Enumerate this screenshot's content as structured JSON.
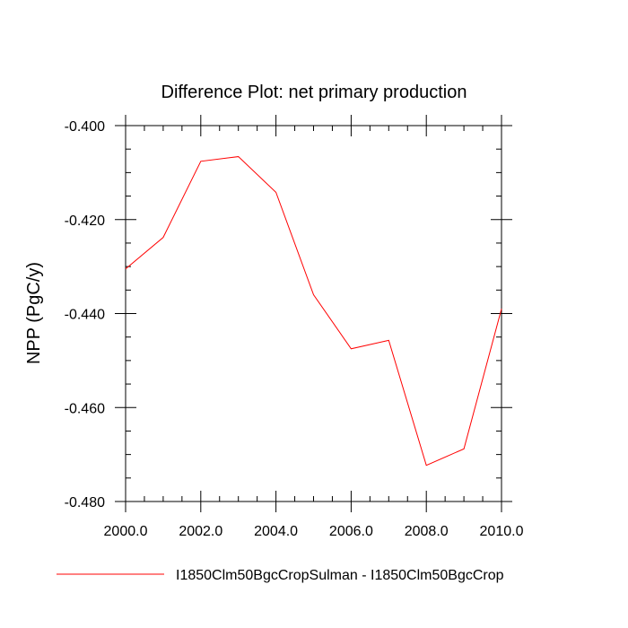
{
  "chart_data": {
    "type": "line",
    "title": "Difference Plot: net primary production",
    "ylabel": "NPP  (PgC/y)",
    "xlabel": "",
    "xlim": [
      2000.0,
      2010.0
    ],
    "ylim": [
      -0.48,
      -0.4
    ],
    "x_ticks": [
      "2000.0",
      "2002.0",
      "2004.0",
      "2006.0",
      "2008.0",
      "2010.0"
    ],
    "y_ticks": [
      "-0.400",
      "-0.420",
      "-0.440",
      "-0.460",
      "-0.480"
    ],
    "grid": false,
    "legend_position": "bottom",
    "series": [
      {
        "name": "I1850Clm50BgcCropSulman - I1850Clm50BgcCrop",
        "color": "#ff0000",
        "x": [
          2000,
          2001,
          2002,
          2003,
          2004,
          2005,
          2006,
          2007,
          2008,
          2009,
          2010
        ],
        "values": [
          -0.4305,
          -0.4238,
          -0.4076,
          -0.4066,
          -0.4142,
          -0.436,
          -0.4475,
          -0.4457,
          -0.4723,
          -0.4688,
          -0.439
        ]
      }
    ]
  }
}
